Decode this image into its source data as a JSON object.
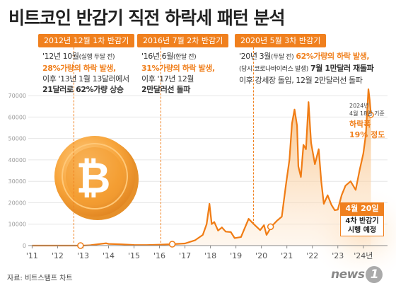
{
  "title": "비트코인 반감기 직전 하락세 패턴 분석",
  "halvings": [
    {
      "badge": "2012년 12월 1차 반감기",
      "line1": "'12년 10월",
      "line1_small": "(실행 두달 전)",
      "line2": "28%가량의 하락 발생,",
      "line3": "이후 '13년 1월 13달러에서",
      "line4": "21달러로 62%가량 상승"
    },
    {
      "badge": "2016년 7월 2차 반감기",
      "line1": "'16년 6월",
      "line1_small": "(한달 전)",
      "line2": "31%가량의 하락 발생,",
      "line3": "이후 '17년 12월",
      "line4": "2만달러선 돌파"
    },
    {
      "badge": "2020년 5월 3차 반감기",
      "line1": "'20년 3월",
      "line1_small": "(두달 전)",
      "line1_hl": "62%가량의 하락 발생,",
      "line2_small": "(당시 코로나바이러스 발생)",
      "line2": "7월 1만달러 재돌파",
      "line3": "이후 강세장 돌입, 12월 2만달러선 돌파"
    }
  ],
  "side_note": {
    "line1": "2024년",
    "line2": "4월 18일 기준",
    "drop_label": "하락폭",
    "drop_value": "19% 정도"
  },
  "event": {
    "date": "4월 20일",
    "line1": "4차 반감기",
    "line2": "시행 예정"
  },
  "source": "자료: 비트스탬프 차트",
  "logo": {
    "text": "news",
    "mark": "1"
  },
  "colors": {
    "accent": "#f0801e",
    "coin": "#f7a43a",
    "axis": "#999999"
  },
  "chart_data": {
    "type": "area",
    "y_ticks": [
      0,
      10000,
      20000,
      30000,
      40000,
      50000,
      60000,
      70000
    ],
    "ylim": [
      0,
      75000
    ],
    "x_tick_labels": [
      "'11",
      "'12",
      "'13",
      "'14",
      "'15",
      "'16",
      "'17",
      "'18",
      "'19",
      "'20",
      "'21",
      "'22",
      "'23",
      "'24년"
    ],
    "x_tick_years": [
      2011,
      2012,
      2013,
      2014,
      2015,
      2016,
      2017,
      2018,
      2019,
      2020,
      2021,
      2022,
      2023,
      2024
    ],
    "series": [
      {
        "points": [
          [
            2011.0,
            0
          ],
          [
            2012.0,
            10
          ],
          [
            2012.8,
            12
          ],
          [
            2013.0,
            13
          ],
          [
            2013.3,
            200
          ],
          [
            2013.9,
            1100
          ],
          [
            2014.0,
            800
          ],
          [
            2014.5,
            600
          ],
          [
            2015.0,
            300
          ],
          [
            2015.5,
            250
          ],
          [
            2016.0,
            430
          ],
          [
            2016.5,
            650
          ],
          [
            2017.0,
            1000
          ],
          [
            2017.4,
            2500
          ],
          [
            2017.7,
            5000
          ],
          [
            2017.85,
            10000
          ],
          [
            2017.96,
            19500
          ],
          [
            2018.05,
            10000
          ],
          [
            2018.15,
            11000
          ],
          [
            2018.3,
            7000
          ],
          [
            2018.45,
            8500
          ],
          [
            2018.6,
            6500
          ],
          [
            2018.8,
            6300
          ],
          [
            2018.95,
            3500
          ],
          [
            2019.2,
            4000
          ],
          [
            2019.5,
            12500
          ],
          [
            2019.7,
            10000
          ],
          [
            2019.95,
            7200
          ],
          [
            2020.1,
            9500
          ],
          [
            2020.2,
            5000
          ],
          [
            2020.4,
            9000
          ],
          [
            2020.6,
            11500
          ],
          [
            2020.8,
            13500
          ],
          [
            2020.97,
            29000
          ],
          [
            2021.1,
            40000
          ],
          [
            2021.2,
            57000
          ],
          [
            2021.3,
            63500
          ],
          [
            2021.4,
            56000
          ],
          [
            2021.45,
            37000
          ],
          [
            2021.55,
            32000
          ],
          [
            2021.65,
            47000
          ],
          [
            2021.75,
            45000
          ],
          [
            2021.85,
            67000
          ],
          [
            2021.95,
            48000
          ],
          [
            2022.1,
            38000
          ],
          [
            2022.25,
            45000
          ],
          [
            2022.35,
            30000
          ],
          [
            2022.45,
            19500
          ],
          [
            2022.6,
            23500
          ],
          [
            2022.75,
            19000
          ],
          [
            2022.88,
            16500
          ],
          [
            2023.0,
            16800
          ],
          [
            2023.15,
            23500
          ],
          [
            2023.3,
            28000
          ],
          [
            2023.5,
            30000
          ],
          [
            2023.7,
            26000
          ],
          [
            2023.85,
            35000
          ],
          [
            2024.0,
            43000
          ],
          [
            2024.1,
            52000
          ],
          [
            2024.2,
            73000
          ],
          [
            2024.25,
            68000
          ],
          [
            2024.3,
            61000
          ]
        ]
      }
    ],
    "halving_markers": [
      {
        "x": 2012.9,
        "y": 13
      },
      {
        "x": 2016.5,
        "y": 650
      },
      {
        "x": 2020.36,
        "y": 8800
      }
    ],
    "current_marker": {
      "x": 2024.3,
      "y": 61000
    }
  }
}
